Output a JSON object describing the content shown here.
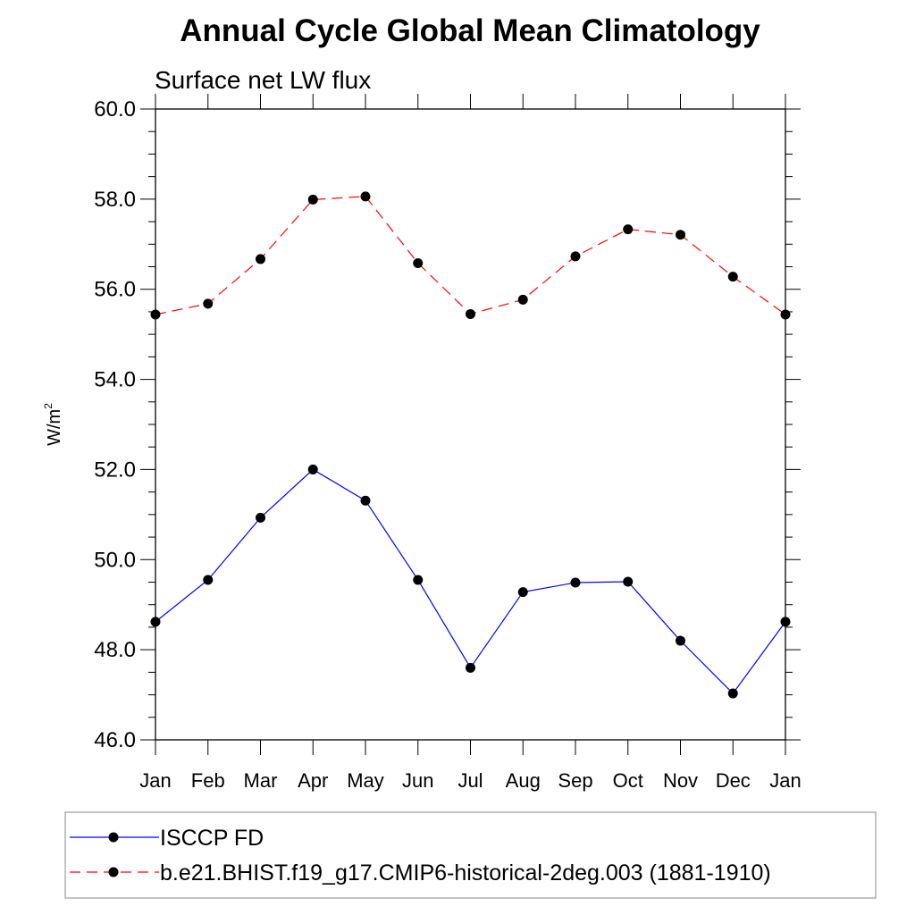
{
  "chart_data": {
    "type": "line",
    "title": "Annual Cycle Global Mean Climatology",
    "subtitle": "Surface net LW flux",
    "ylabel": "W/m",
    "ylabel_sup": "2",
    "xlabel": "",
    "ylim": [
      46.0,
      60.0
    ],
    "yticks": [
      "46.0",
      "48.0",
      "50.0",
      "52.0",
      "54.0",
      "56.0",
      "58.0",
      "60.0"
    ],
    "categories": [
      "Jan",
      "Feb",
      "Mar",
      "Apr",
      "May",
      "Jun",
      "Jul",
      "Aug",
      "Sep",
      "Oct",
      "Nov",
      "Dec",
      "Jan"
    ],
    "grid": false,
    "legend_position": "bottom",
    "series": [
      {
        "name": "ISCCP FD",
        "color": "#0000ff",
        "line_style": "solid",
        "marker": "filled-circle",
        "values": [
          48.62,
          49.55,
          50.93,
          52.0,
          51.31,
          49.55,
          47.6,
          49.28,
          49.49,
          49.51,
          48.2,
          47.03,
          48.62
        ]
      },
      {
        "name": "b.e21.BHIST.f19_g17.CMIP6-historical-2deg.003 (1881-1910)",
        "color": "#ff0000",
        "line_style": "dashed",
        "marker": "filled-circle",
        "values": [
          55.44,
          55.68,
          56.67,
          57.99,
          58.06,
          56.58,
          55.45,
          55.77,
          56.73,
          57.33,
          57.21,
          56.28,
          55.44
        ]
      }
    ]
  }
}
